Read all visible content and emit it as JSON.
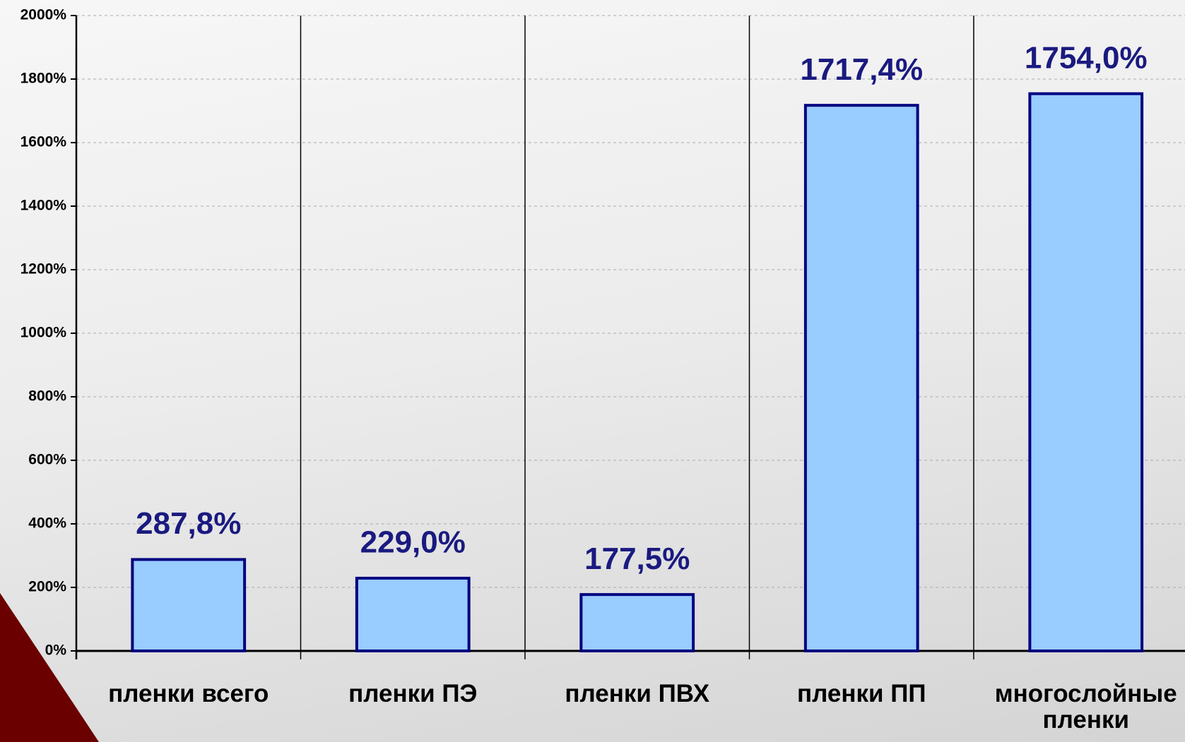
{
  "chart_data": {
    "type": "bar",
    "categories": [
      "пленки всего",
      "пленки ПЭ",
      "пленки ПВХ",
      "пленки ПП",
      "многослойные пленки"
    ],
    "values": [
      287.8,
      229.0,
      177.5,
      1717.4,
      1754.0
    ],
    "value_labels": [
      "287,8%",
      "229,0%",
      "177,5%",
      "1717,4%",
      "1754,0%"
    ],
    "color": "#99ccff",
    "edge_color": "#000080",
    "label_color": "#1a1a80",
    "ylim": [
      0,
      2000
    ],
    "yticks": [
      {
        "value": 0,
        "label": "0%"
      },
      {
        "value": 200,
        "label": "200%"
      },
      {
        "value": 400,
        "label": "400%"
      },
      {
        "value": 600,
        "label": "600%"
      },
      {
        "value": 800,
        "label": "800%"
      },
      {
        "value": 1000,
        "label": "1000%"
      },
      {
        "value": 1200,
        "label": "1200%"
      },
      {
        "value": 1400,
        "label": "1400%"
      },
      {
        "value": 1600,
        "label": "1600%"
      },
      {
        "value": 1800,
        "label": "1800%"
      },
      {
        "value": 2000,
        "label": "2000%"
      }
    ],
    "grid": true
  }
}
